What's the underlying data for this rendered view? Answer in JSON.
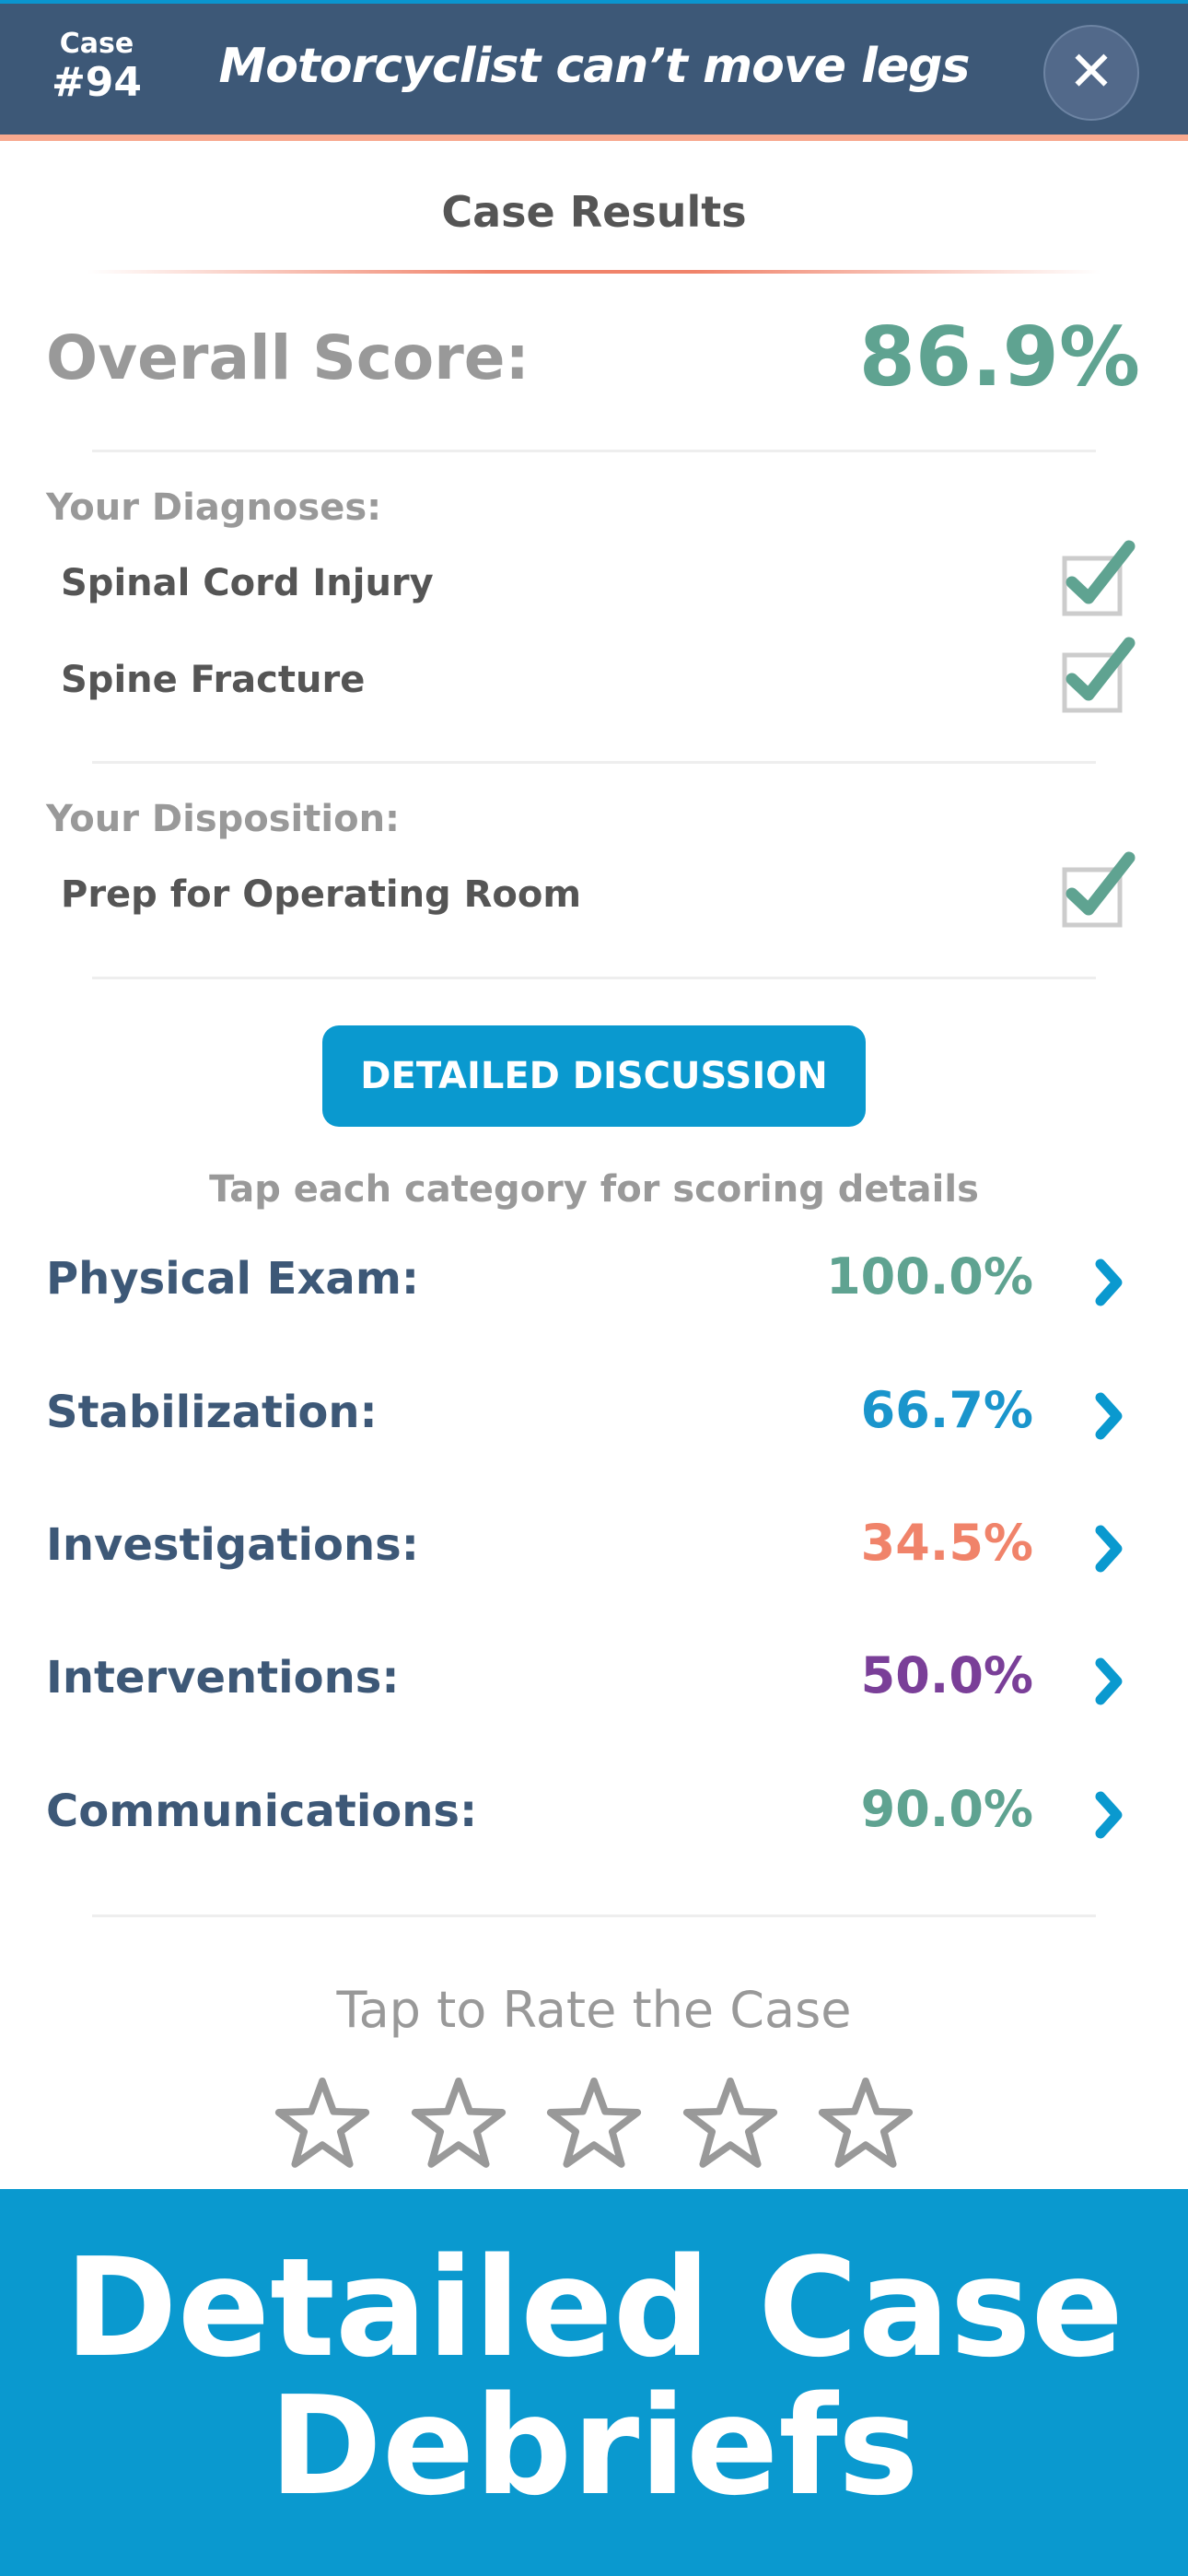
{
  "header": {
    "case_label": "Case",
    "case_number": "#94",
    "title": "Motorcyclist can’t move legs",
    "close_icon": "x-icon"
  },
  "results": {
    "title": "Case Results",
    "overall_label": "Overall Score:",
    "overall_value": "86.9%"
  },
  "diagnoses": {
    "label": "Your Diagnoses:",
    "items": [
      {
        "text": "Spinal Cord Injury",
        "checked": true
      },
      {
        "text": "Spine Fracture",
        "checked": true
      }
    ]
  },
  "disposition": {
    "label": "Your Disposition:",
    "items": [
      {
        "text": "Prep for Operating Room",
        "checked": true
      }
    ]
  },
  "discussion_button": "DETAILED DISCUSSION",
  "categories_hint": "Tap each category for scoring details",
  "categories": [
    {
      "label": "Physical Exam:",
      "value": "100.0%",
      "color": "#5fa391"
    },
    {
      "label": "Stabilization:",
      "value": "66.7%",
      "color": "#1a95cc"
    },
    {
      "label": "Investigations:",
      "value": "34.5%",
      "color": "#f0836a"
    },
    {
      "label": "Interventions:",
      "value": "50.0%",
      "color": "#7a3f98"
    },
    {
      "label": "Communications:",
      "value": "90.0%",
      "color": "#5fa391"
    }
  ],
  "rating": {
    "label": "Tap to Rate the Case",
    "stars": 5,
    "selected": 0
  },
  "banner": {
    "line1": "Detailed Case",
    "line2": "Debriefs"
  },
  "colors": {
    "header": "#3d5877",
    "accent": "#0a99cf",
    "check": "#5fa391"
  }
}
